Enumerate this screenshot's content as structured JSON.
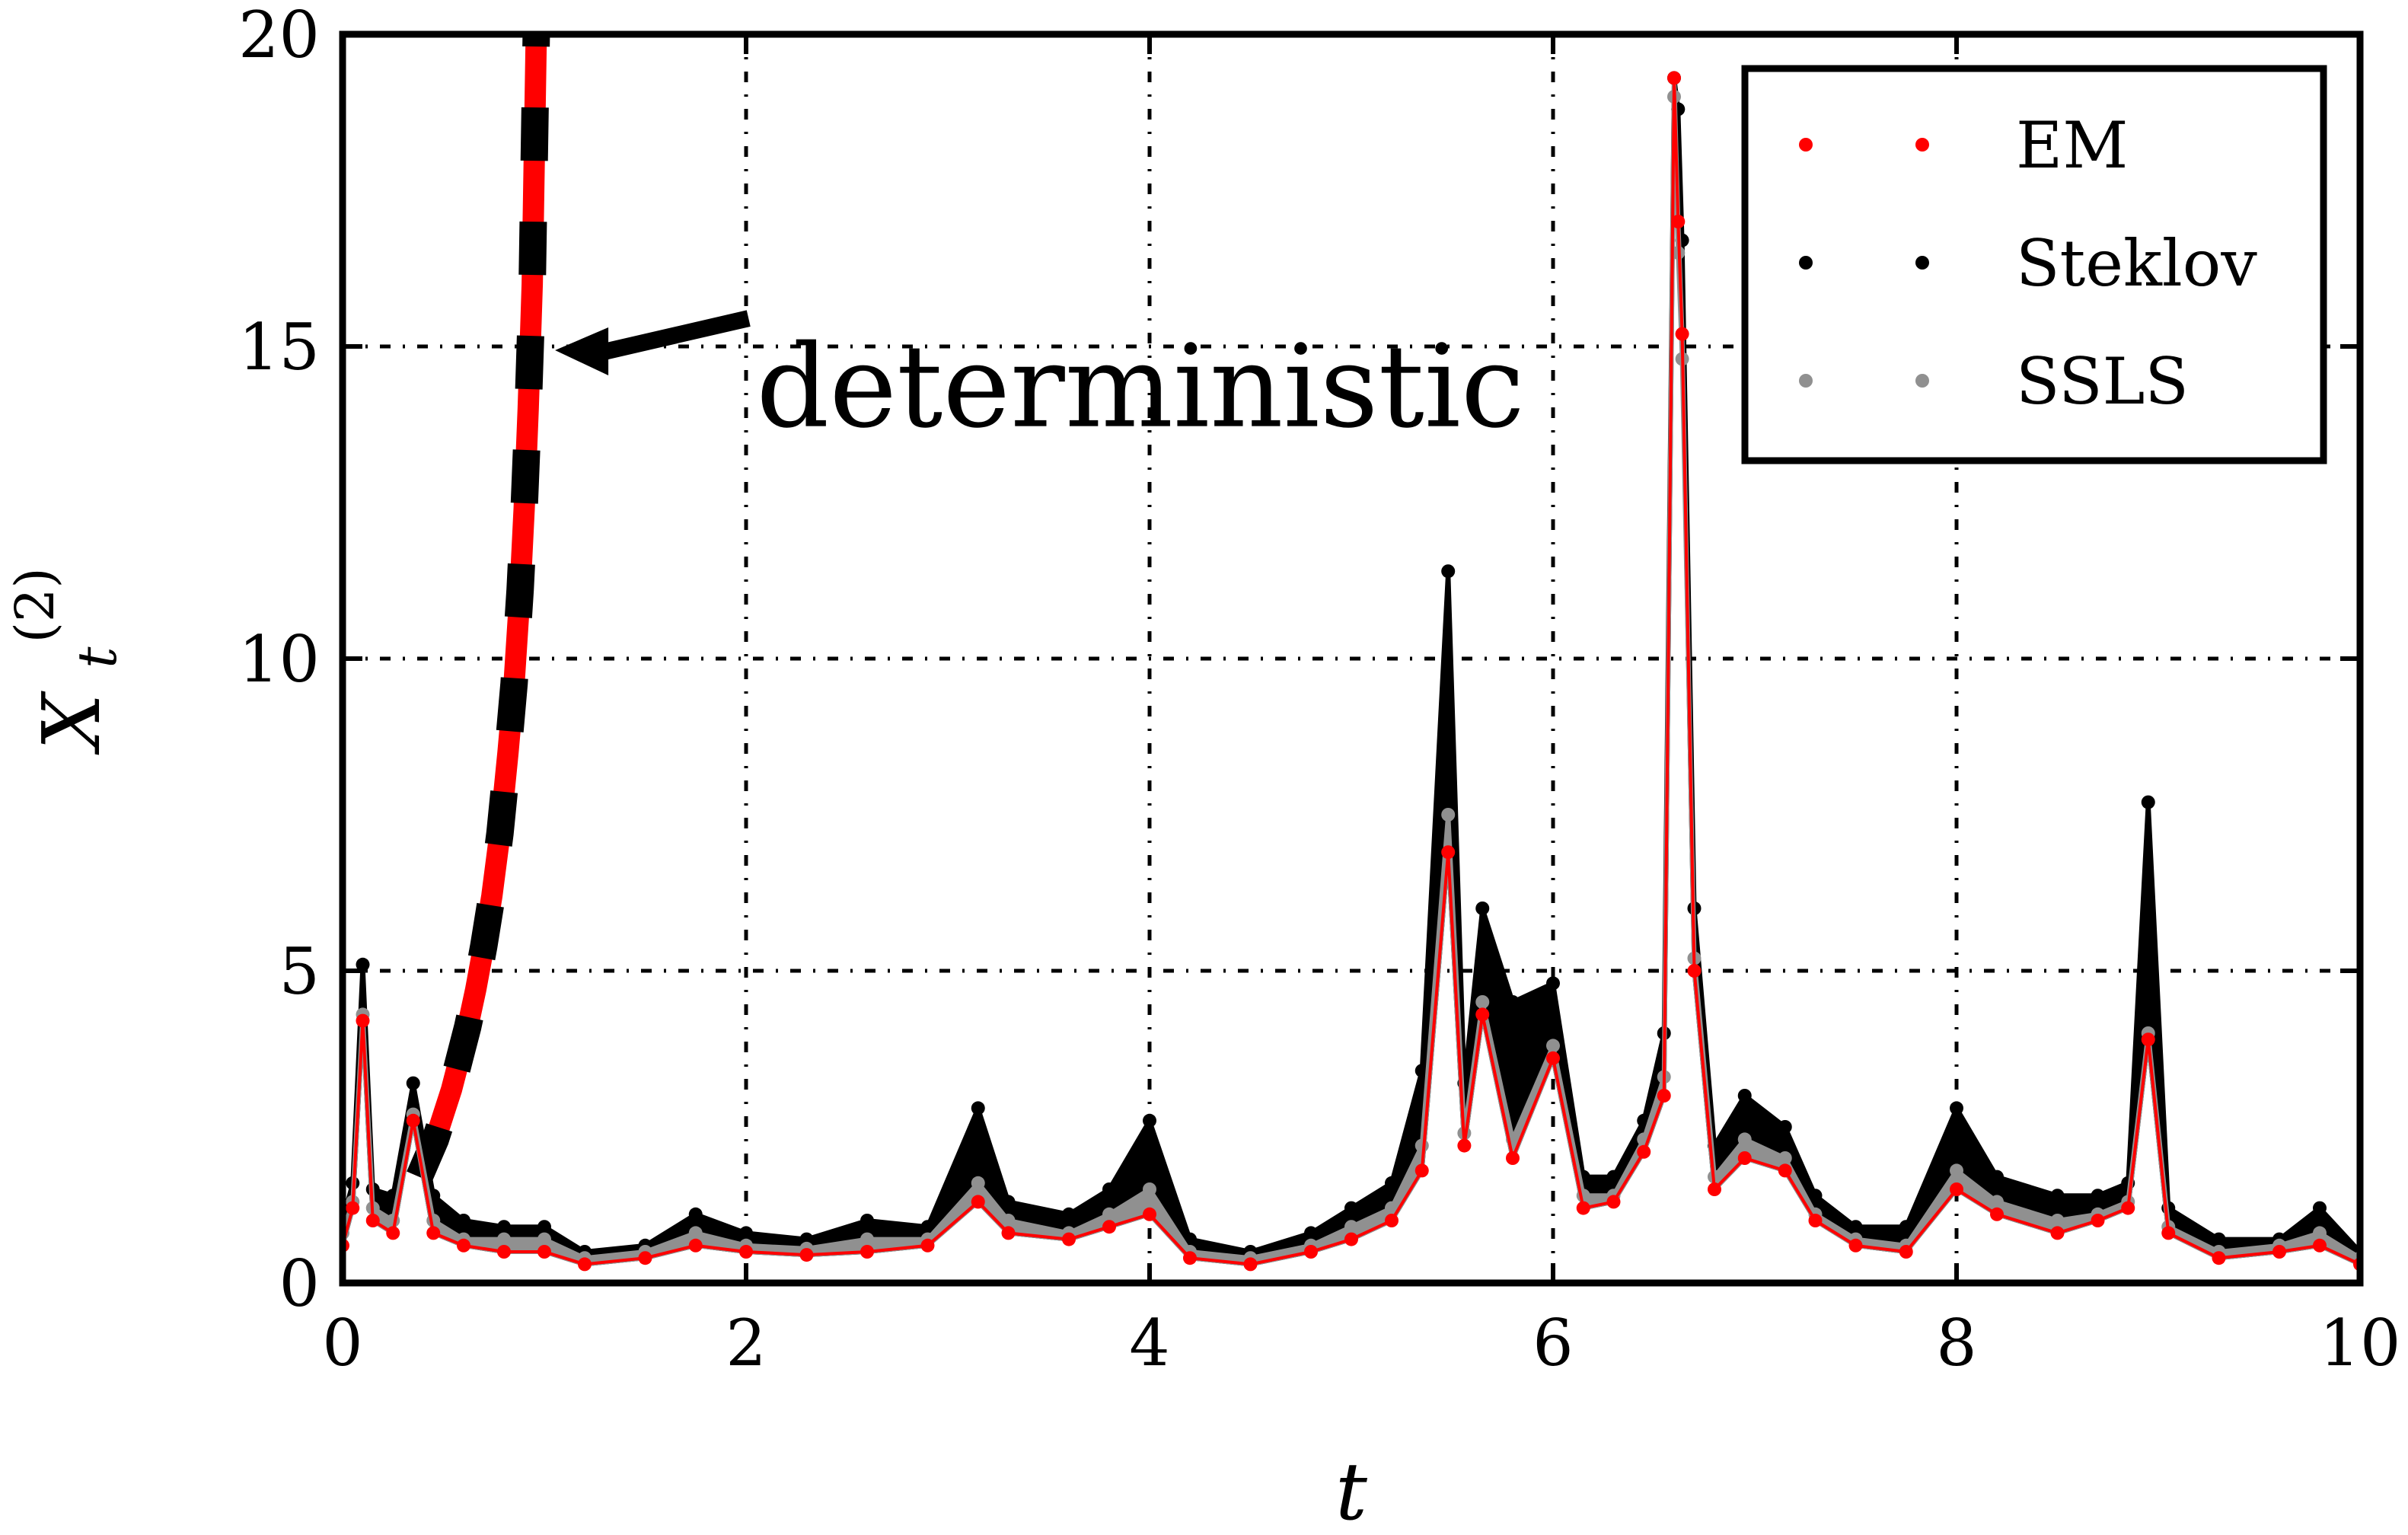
{
  "chart_data": {
    "type": "scatter",
    "title": "",
    "xlabel": "t",
    "ylabel": "X",
    "ylabel_superscript": "(2)",
    "ylabel_subscript": "t",
    "xlim": [
      0,
      10
    ],
    "ylim": [
      0,
      20
    ],
    "xticks": [
      0,
      2,
      4,
      6,
      8,
      10
    ],
    "yticks": [
      0,
      5,
      10,
      15,
      20
    ],
    "x_tick_labels": [
      "0",
      "2",
      "4",
      "6",
      "8",
      "10"
    ],
    "y_tick_labels": [
      "0",
      "5",
      "10",
      "15",
      "20"
    ],
    "grid": true,
    "legend_position": "top-right",
    "annotation": {
      "text": "deterministic",
      "points_to": [
        0.94,
        15.0
      ],
      "text_at": [
        2.05,
        14.7
      ]
    },
    "deterministic_curve": {
      "style": "red solid with black dashed overlay",
      "x": [
        0.38,
        0.42,
        0.46,
        0.5,
        0.54,
        0.58,
        0.62,
        0.66,
        0.7,
        0.74,
        0.78,
        0.82,
        0.85,
        0.88,
        0.9,
        0.92,
        0.94,
        0.96
      ],
      "y": [
        1.7,
        2.0,
        2.3,
        2.7,
        3.1,
        3.6,
        4.1,
        4.7,
        5.4,
        6.2,
        7.2,
        8.5,
        9.6,
        11.1,
        12.4,
        14.0,
        16.0,
        20.0
      ]
    },
    "series": [
      {
        "name": "EM",
        "color": "#ff0000",
        "x": [
          0,
          0.05,
          0.1,
          0.15,
          0.25,
          0.35,
          0.45,
          0.6,
          0.8,
          1.0,
          1.2,
          1.5,
          1.75,
          2.0,
          2.3,
          2.6,
          2.9,
          3.15,
          3.3,
          3.6,
          3.8,
          4.0,
          4.2,
          4.5,
          4.8,
          5.0,
          5.2,
          5.35,
          5.48,
          5.56,
          5.65,
          5.8,
          6.0,
          6.15,
          6.3,
          6.45,
          6.55,
          6.6,
          6.62,
          6.64,
          6.7,
          6.8,
          6.95,
          7.15,
          7.3,
          7.5,
          7.75,
          8.0,
          8.2,
          8.5,
          8.7,
          8.85,
          8.95,
          9.05,
          9.3,
          9.6,
          9.8,
          10.0
        ],
        "y": [
          0.6,
          1.2,
          4.2,
          1.0,
          0.8,
          2.6,
          0.8,
          0.6,
          0.5,
          0.5,
          0.3,
          0.4,
          0.6,
          0.5,
          0.45,
          0.5,
          0.6,
          1.3,
          0.8,
          0.7,
          0.9,
          1.1,
          0.4,
          0.3,
          0.5,
          0.7,
          1.0,
          1.8,
          6.9,
          2.2,
          4.3,
          2.0,
          3.6,
          1.2,
          1.3,
          2.1,
          3.0,
          19.3,
          17.0,
          15.2,
          5.0,
          1.5,
          2.0,
          1.8,
          1.0,
          0.6,
          0.5,
          1.5,
          1.1,
          0.8,
          1.0,
          1.2,
          3.9,
          0.8,
          0.4,
          0.5,
          0.6,
          0.3
        ]
      },
      {
        "name": "Steklov",
        "color": "#000000",
        "x": [
          0,
          0.05,
          0.1,
          0.15,
          0.25,
          0.35,
          0.45,
          0.6,
          0.8,
          1.0,
          1.2,
          1.5,
          1.75,
          2.0,
          2.3,
          2.6,
          2.9,
          3.15,
          3.3,
          3.6,
          3.8,
          4.0,
          4.2,
          4.5,
          4.8,
          5.0,
          5.2,
          5.35,
          5.48,
          5.56,
          5.65,
          5.8,
          6.0,
          6.15,
          6.3,
          6.45,
          6.55,
          6.6,
          6.62,
          6.64,
          6.7,
          6.8,
          6.95,
          7.15,
          7.3,
          7.5,
          7.75,
          8.0,
          8.2,
          8.5,
          8.7,
          8.85,
          8.95,
          9.05,
          9.3,
          9.6,
          9.8,
          10.0
        ],
        "y": [
          1.0,
          1.6,
          5.1,
          1.5,
          1.4,
          3.2,
          1.4,
          1.0,
          0.9,
          0.9,
          0.5,
          0.6,
          1.1,
          0.8,
          0.7,
          1.0,
          0.9,
          2.8,
          1.3,
          1.1,
          1.5,
          2.6,
          0.7,
          0.5,
          0.8,
          1.2,
          1.6,
          3.4,
          11.4,
          3.2,
          6.0,
          4.5,
          4.8,
          1.7,
          1.7,
          2.6,
          4.0,
          19.3,
          18.8,
          16.7,
          6.0,
          2.2,
          3.0,
          2.5,
          1.4,
          0.9,
          0.9,
          2.8,
          1.7,
          1.4,
          1.4,
          1.6,
          7.7,
          1.2,
          0.7,
          0.7,
          1.2,
          0.5
        ]
      },
      {
        "name": "SSLS",
        "color": "#909090",
        "x": [
          0,
          0.05,
          0.1,
          0.15,
          0.25,
          0.35,
          0.45,
          0.6,
          0.8,
          1.0,
          1.2,
          1.5,
          1.75,
          2.0,
          2.3,
          2.6,
          2.9,
          3.15,
          3.3,
          3.6,
          3.8,
          4.0,
          4.2,
          4.5,
          4.8,
          5.0,
          5.2,
          5.35,
          5.48,
          5.56,
          5.65,
          5.8,
          6.0,
          6.15,
          6.3,
          6.45,
          6.55,
          6.6,
          6.62,
          6.64,
          6.7,
          6.8,
          6.95,
          7.15,
          7.3,
          7.5,
          7.75,
          8.0,
          8.2,
          8.5,
          8.7,
          8.85,
          8.95,
          9.05,
          9.3,
          9.6,
          9.8,
          10.0
        ],
        "y": [
          0.8,
          1.3,
          4.3,
          1.2,
          1.0,
          2.7,
          1.0,
          0.7,
          0.7,
          0.7,
          0.4,
          0.5,
          0.8,
          0.6,
          0.55,
          0.7,
          0.7,
          1.6,
          1.0,
          0.8,
          1.1,
          1.5,
          0.5,
          0.4,
          0.6,
          0.9,
          1.2,
          2.2,
          7.5,
          2.4,
          4.5,
          2.3,
          3.8,
          1.4,
          1.4,
          2.3,
          3.3,
          19.0,
          16.5,
          14.8,
          5.2,
          1.7,
          2.3,
          2.0,
          1.1,
          0.7,
          0.6,
          1.8,
          1.3,
          1.0,
          1.1,
          1.3,
          4.0,
          0.9,
          0.5,
          0.6,
          0.8,
          0.4
        ]
      }
    ]
  }
}
